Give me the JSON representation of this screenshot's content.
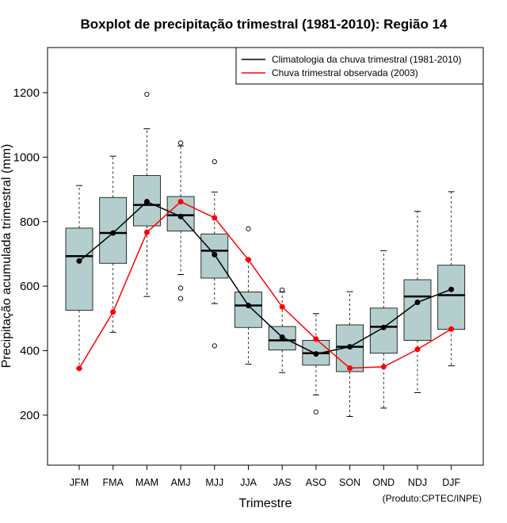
{
  "chart_data": {
    "type": "boxplot",
    "title": "Boxplot de precipitação trimestral (1981-2010): Região 14",
    "xlabel": "Trimestre",
    "ylabel": "Precipitação acumulada trimestral (mm)",
    "credit": "(Produto:CPTEC/INPE)",
    "ylim": [
      45,
      1340
    ],
    "yticks": [
      200,
      400,
      600,
      800,
      1000,
      1200
    ],
    "categories": [
      "JFM",
      "FMA",
      "MAM",
      "AMJ",
      "MJJ",
      "JJA",
      "JAS",
      "ASO",
      "SON",
      "OND",
      "NDJ",
      "DJF"
    ],
    "boxes": [
      {
        "min": 345,
        "q1": 525,
        "median": 693,
        "q3": 780,
        "max": 912,
        "outliers": []
      },
      {
        "min": 457,
        "q1": 671,
        "median": 765,
        "q3": 875,
        "max": 1003,
        "outliers": []
      },
      {
        "min": 568,
        "q1": 787,
        "median": 852,
        "q3": 943,
        "max": 1088,
        "outliers": [
          1195
        ]
      },
      {
        "min": 636,
        "q1": 771,
        "median": 820,
        "q3": 878,
        "max": 1035,
        "outliers": [
          1044,
          594,
          562
        ]
      },
      {
        "min": 546,
        "q1": 625,
        "median": 710,
        "q3": 762,
        "max": 892,
        "outliers": [
          986,
          415
        ]
      },
      {
        "min": 358,
        "q1": 472,
        "median": 540,
        "q3": 582,
        "max": 683,
        "outliers": [
          778
        ]
      },
      {
        "min": 332,
        "q1": 402,
        "median": 432,
        "q3": 475,
        "max": 582,
        "outliers": [
          588
        ]
      },
      {
        "min": 263,
        "q1": 355,
        "median": 392,
        "q3": 432,
        "max": 515,
        "outliers": [
          210
        ]
      },
      {
        "min": 196,
        "q1": 335,
        "median": 412,
        "q3": 480,
        "max": 583,
        "outliers": []
      },
      {
        "min": 222,
        "q1": 392,
        "median": 474,
        "q3": 532,
        "max": 710,
        "outliers": []
      },
      {
        "min": 270,
        "q1": 432,
        "median": 568,
        "q3": 620,
        "max": 832,
        "outliers": []
      },
      {
        "min": 353,
        "q1": 466,
        "median": 572,
        "q3": 665,
        "max": 893,
        "outliers": []
      }
    ],
    "series": [
      {
        "name": "Climatologia da chuva trimestral (1981-2010)",
        "color": "#000000",
        "values": [
          678,
          765,
          862,
          816,
          698,
          540,
          442,
          390,
          412,
          472,
          550,
          590
        ]
      },
      {
        "name": "Chuva trimestral observada (2003)",
        "color": "#ff0000",
        "values": [
          345,
          520,
          767,
          862,
          812,
          682,
          536,
          436,
          346,
          350,
          404,
          467
        ]
      }
    ],
    "box_color": "#b4cece"
  }
}
